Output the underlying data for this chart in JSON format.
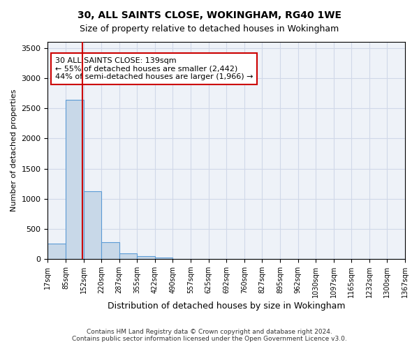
{
  "title": "30, ALL SAINTS CLOSE, WOKINGHAM, RG40 1WE",
  "subtitle": "Size of property relative to detached houses in Wokingham",
  "xlabel": "Distribution of detached houses by size in Wokingham",
  "ylabel": "Number of detached properties",
  "footer1": "Contains HM Land Registry data © Crown copyright and database right 2024.",
  "footer2": "Contains public sector information licensed under the Open Government Licence v3.0.",
  "bin_labels": [
    "17sqm",
    "85sqm",
    "152sqm",
    "220sqm",
    "287sqm",
    "355sqm",
    "422sqm",
    "490sqm",
    "557sqm",
    "625sqm",
    "692sqm",
    "760sqm",
    "827sqm",
    "895sqm",
    "962sqm",
    "1030sqm",
    "1097sqm",
    "1165sqm",
    "1232sqm",
    "1300sqm",
    "1367sqm"
  ],
  "bar_values": [
    260,
    2640,
    1130,
    280,
    100,
    50,
    30,
    0,
    0,
    0,
    0,
    0,
    0,
    0,
    0,
    0,
    0,
    0,
    0,
    0
  ],
  "bar_color": "#c8d8e8",
  "bar_edge_color": "#5b9bd5",
  "ylim": [
    0,
    3600
  ],
  "yticks": [
    0,
    500,
    1000,
    1500,
    2000,
    2500,
    3000,
    3500
  ],
  "red_line_x": 1.45,
  "annotation_text": "30 ALL SAINTS CLOSE: 139sqm\n← 55% of detached houses are smaller (2,442)\n44% of semi-detached houses are larger (1,966) →",
  "annotation_box_color": "#ffffff",
  "annotation_edge_color": "#cc0000",
  "vline_color": "#cc0000",
  "grid_color": "#d0d8e8",
  "background_color": "#eef2f8"
}
